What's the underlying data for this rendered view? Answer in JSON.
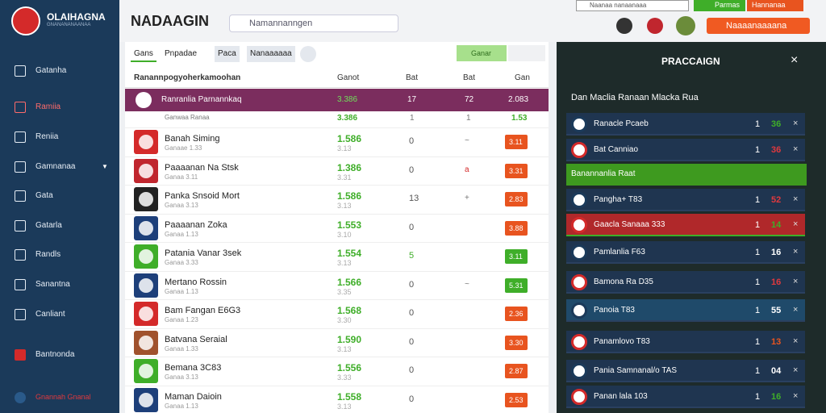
{
  "sidebar": {
    "logo_title": "OLAIHAGNA",
    "logo_subtitle": "GNANANANAANAA",
    "nav": [
      "Gatanha",
      "Ramiia",
      "Reniia",
      "Gamnanaa",
      "Gata",
      "Gatarla",
      "Randls",
      "Sanantna",
      "Canliant",
      "Bantnonda"
    ],
    "footer": "Gnannah Gnanal"
  },
  "header": {
    "title": "NADAAGIN",
    "search": "Namannanngen",
    "top_search": "Naanaa nanaanaaa",
    "status": "Parmas",
    "menu": "Hannanaa",
    "button": "Naaaanaaaana"
  },
  "table": {
    "tabs": [
      "Gans",
      "Pnpadae",
      "Paca",
      "Nanaaaaaa"
    ],
    "action": "Ganar",
    "columns": [
      "Ranannpogyoherkamoohan",
      "Ganot",
      "Bat",
      "Bat",
      "Gan"
    ],
    "featured": [
      "Ranranlia Parnannkaq",
      "3.386",
      "17",
      "72",
      "2.083"
    ],
    "summary": [
      "Ganwaa Ranaa",
      "3.386",
      "1",
      "1",
      "1.53"
    ],
    "rows": [
      {
        "name": "Banah Siming",
        "sub": "Ganaae 1.33",
        "odds": "1.586",
        "odds_sub": "3.13",
        "c3": "0",
        "c4": "~",
        "badge": "3.11",
        "badge_color": "#e8541f",
        "logo_color": "#d42a2a"
      },
      {
        "name": "Paaaanan Na Stsk",
        "sub": "Ganaa 3.11",
        "odds": "1.386",
        "odds_sub": "3.31",
        "c3": "0",
        "c4": "a",
        "badge": "3.31",
        "badge_color": "#e8541f",
        "logo_color": "#c0262e"
      },
      {
        "name": "Panka Snsoid Mort",
        "sub": "Ganaa 3.13",
        "odds": "1.586",
        "odds_sub": "3.13",
        "c3": "13",
        "c4": "+",
        "badge": "2.83",
        "badge_color": "#e8541f",
        "logo_color": "#222222"
      },
      {
        "name": "Paaaanan Zoka",
        "sub": "Ganaa 1.13",
        "odds": "1.553",
        "odds_sub": "3.10",
        "c3": "0",
        "badge": "3.88",
        "badge_color": "#e8541f",
        "logo_color": "#1d3f7a"
      },
      {
        "name": "Patania Vanar 3sek",
        "sub": "Ganaa 3.33",
        "odds": "1.554",
        "odds_sub": "3.13",
        "c3": "5",
        "badge": "3.11",
        "badge_color": "#3fae29",
        "logo_color": "#3fae29"
      },
      {
        "name": "Mertano Rossin",
        "sub": "Ganaa 1.13",
        "odds": "1.566",
        "odds_sub": "3.35",
        "c3": "0",
        "c4": "~",
        "badge": "5.31",
        "badge_color": "#3fae29",
        "logo_color": "#1d3f7a"
      },
      {
        "name": "Bam Fangan E6G3",
        "sub": "Ganaa 1.23",
        "odds": "1.568",
        "odds_sub": "3.30",
        "c3": "0",
        "badge": "2.36",
        "badge_color": "#e8541f",
        "logo_color": "#d42a2a"
      },
      {
        "name": "Batvana Seraial",
        "sub": "Ganaa 1.33",
        "odds": "1.590",
        "odds_sub": "3.13",
        "c3": "0",
        "badge": "3.30",
        "badge_color": "#e8541f",
        "logo_color": "#a0522d"
      },
      {
        "name": "Bemana 3C83",
        "sub": "Ganaa 3.13",
        "odds": "1.556",
        "odds_sub": "3.33",
        "c3": "0",
        "badge": "2.87",
        "badge_color": "#e8541f",
        "logo_color": "#3fae29"
      },
      {
        "name": "Maman Daioin",
        "sub": "Ganaa 1.13",
        "odds": "1.558",
        "odds_sub": "3.13",
        "c3": "0",
        "badge": "2.53",
        "badge_color": "#e8541f",
        "logo_color": "#1d3f7a"
      }
    ]
  },
  "panel": {
    "title": "PRACCAIGN",
    "subtitle": "Dan Maclia Ranaan Mlacka Rua",
    "group": "Banannanlia Raat",
    "rows": [
      {
        "name": "Ranacle Pcaeb",
        "a": "1",
        "b": "36",
        "value_color": "#3fae29",
        "bg": "#1f3550"
      },
      {
        "name": "Bat Canniao",
        "a": "1",
        "b": "36",
        "value_color": "#e0393e",
        "bg": "#1f3550"
      },
      {
        "name": "Pangha+ T83",
        "a": "1",
        "b": "52",
        "value_color": "#e0393e",
        "bg": "#1f3550"
      },
      {
        "name": "Gaacla Sanaaa 333",
        "a": "1",
        "b": "14",
        "value_color": "#3fae29",
        "bg": "#b0282a"
      },
      {
        "name": "Pamlanlia F63",
        "a": "1",
        "b": "16",
        "value_color": "#ffffff",
        "bg": "#1f3550"
      },
      {
        "name": "Bamona Ra D35",
        "a": "1",
        "b": "16",
        "value_color": "#e0393e",
        "bg": "#1f3550"
      },
      {
        "name": "Panoia T83",
        "a": "1",
        "b": "55",
        "value_color": "#ffffff",
        "bg": "#1f4a6a"
      },
      {
        "name": "Panamlovo T83",
        "a": "1",
        "b": "13",
        "value_color": "#e8541f",
        "bg": "#1f3550"
      },
      {
        "name": "Pania Samnanal/o TAS",
        "a": "1",
        "b": "04",
        "value_color": "#ffffff",
        "bg": "#1f3550"
      },
      {
        "name": "Panan lala 103",
        "a": "1",
        "b": "16",
        "value_color": "#3fae29",
        "bg": "#1f3550"
      }
    ]
  }
}
